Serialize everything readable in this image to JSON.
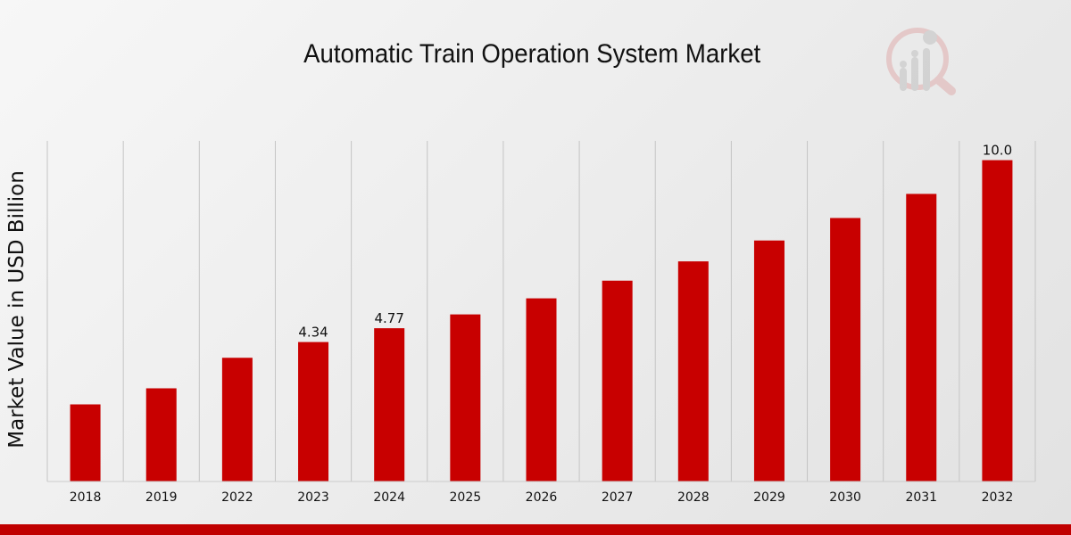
{
  "chart_data": {
    "type": "bar",
    "title": "Automatic Train Operation System Market",
    "xlabel": "",
    "ylabel": "Market Value in USD Billion",
    "categories": [
      "2018",
      "2019",
      "2022",
      "2023",
      "2024",
      "2025",
      "2026",
      "2027",
      "2028",
      "2029",
      "2030",
      "2031",
      "2032"
    ],
    "series": [
      {
        "name": "Market Value",
        "values": [
          2.4,
          2.9,
          3.85,
          4.34,
          4.77,
          5.2,
          5.7,
          6.25,
          6.85,
          7.5,
          8.2,
          8.95,
          10.0
        ]
      }
    ],
    "data_labels": {
      "3": "4.34",
      "4": "4.77",
      "12": "10.0"
    },
    "ylim": [
      0,
      10.6
    ],
    "bar_color": "#c80000",
    "grid": "vertical",
    "legend": "none"
  },
  "colors": {
    "bar": "#c80000",
    "bottom_bar": "#c00000",
    "grid": "#c4c4c4",
    "text": "#111111"
  }
}
